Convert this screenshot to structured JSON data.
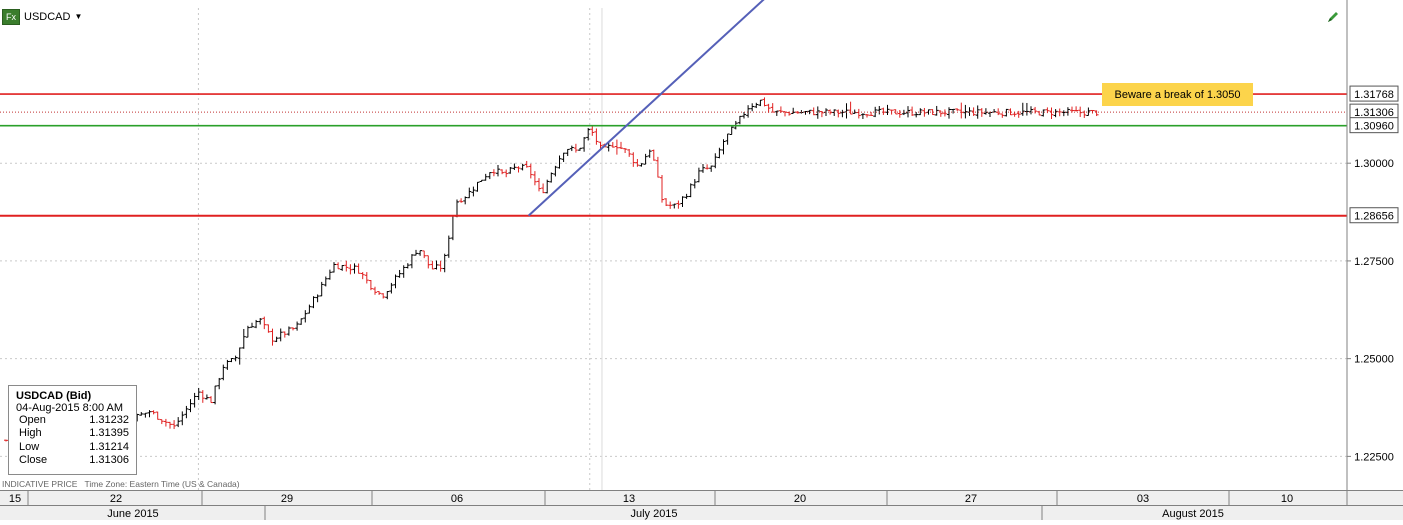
{
  "symbol": "USDCAD",
  "fx_badge": "Fx",
  "note": "Beware a break of 1.3050",
  "footer": {
    "indicative": "INDICATIVE PRICE",
    "timezone": "Time Zone: Eastern Time (US & Canada)"
  },
  "info_box": {
    "title": "USDCAD (Bid)",
    "datetime": "04-Aug-2015 8:00 AM",
    "rows": [
      {
        "label": "Open",
        "value": "1.31232"
      },
      {
        "label": "High",
        "value": "1.31395"
      },
      {
        "label": "Low",
        "value": "1.31214"
      },
      {
        "label": "Close",
        "value": "1.31306"
      }
    ]
  },
  "colors": {
    "up_bar": "#000000",
    "down_bar": "#e02020",
    "resistance": "#e02020",
    "support": "#2aa02a",
    "trendline": "#5560b8",
    "note_bg": "#fcd44b"
  },
  "chart_data": {
    "type": "ohlc",
    "title": "",
    "ylim": [
      1.2164,
      1.3397
    ],
    "y_ticks": [
      "1.22500",
      "1.25000",
      "1.27500",
      "1.30000"
    ],
    "x_ticks": [
      "15",
      "22",
      "29",
      "06",
      "13",
      "20",
      "27",
      "03",
      "10"
    ],
    "months": [
      "June 2015",
      "July 2015",
      "August 2015"
    ],
    "hlines": [
      {
        "kind": "resistance",
        "value": 1.31768,
        "label": "1.31768"
      },
      {
        "kind": "current",
        "value": 1.31306,
        "label": "1.31306"
      },
      {
        "kind": "support",
        "value": 1.3096,
        "label": "1.30960"
      },
      {
        "kind": "support-low",
        "value": 1.28656,
        "label": "1.28656"
      }
    ],
    "trendline": {
      "from": {
        "date": "2015-07-27",
        "value": 1.2866
      },
      "to": {
        "date": "2015-08-04",
        "value": 1.3096
      }
    },
    "anchors": [
      [
        "2015-06-12",
        1.2264
      ],
      [
        "2015-06-15",
        1.23
      ],
      [
        "2015-06-17",
        1.2345
      ],
      [
        "2015-06-18",
        1.233
      ],
      [
        "2015-06-19",
        1.233
      ],
      [
        "2015-06-21",
        1.2415
      ],
      [
        "2015-06-23",
        1.2365
      ],
      [
        "2015-06-24",
        1.234
      ],
      [
        "2015-06-26",
        1.2365
      ],
      [
        "2015-06-28",
        1.2325
      ],
      [
        "2015-06-30",
        1.2415
      ],
      [
        "2015-07-01",
        1.239
      ],
      [
        "2015-07-02",
        1.248
      ],
      [
        "2015-07-03",
        1.25
      ],
      [
        "2015-07-04",
        1.258
      ],
      [
        "2015-07-05",
        1.26
      ],
      [
        "2015-07-06",
        1.255
      ],
      [
        "2015-07-08",
        1.258
      ],
      [
        "2015-07-09",
        1.263
      ],
      [
        "2015-07-10",
        1.268
      ],
      [
        "2015-07-11",
        1.274
      ],
      [
        "2015-07-13",
        1.273
      ],
      [
        "2015-07-14",
        1.269
      ],
      [
        "2015-07-15",
        1.266
      ],
      [
        "2015-07-16",
        1.27
      ],
      [
        "2015-07-17",
        1.274
      ],
      [
        "2015-07-18",
        1.2785
      ],
      [
        "2015-07-19",
        1.273
      ],
      [
        "2015-07-20",
        1.2735
      ],
      [
        "2015-07-21",
        1.29
      ],
      [
        "2015-07-22",
        1.292
      ],
      [
        "2015-07-23",
        1.2955
      ],
      [
        "2015-07-24",
        1.2985
      ],
      [
        "2015-07-25",
        1.297
      ],
      [
        "2015-07-26",
        1.299
      ],
      [
        "2015-07-27",
        1.2985
      ],
      [
        "2015-07-28",
        1.292
      ],
      [
        "2015-07-29",
        1.2985
      ],
      [
        "2015-07-30",
        1.304
      ],
      [
        "2015-07-31",
        1.303
      ],
      [
        "2015-08-01",
        1.309
      ],
      [
        "2015-08-02",
        1.303
      ],
      [
        "2015-08-03",
        1.305
      ],
      [
        "2015-08-04",
        1.303
      ],
      [
        "2015-08-05",
        1.299
      ],
      [
        "2015-08-06",
        1.304
      ],
      [
        "2015-08-07",
        1.2895
      ],
      [
        "2015-08-08",
        1.289
      ],
      [
        "2015-08-09",
        1.2925
      ],
      [
        "2015-08-10",
        1.298
      ],
      [
        "2015-08-11",
        1.299
      ],
      [
        "2015-08-12",
        1.306
      ],
      [
        "2015-08-13",
        1.31
      ],
      [
        "2015-08-14",
        1.3145
      ],
      [
        "2015-08-15",
        1.316
      ],
      [
        "2015-08-16",
        1.313
      ]
    ]
  }
}
